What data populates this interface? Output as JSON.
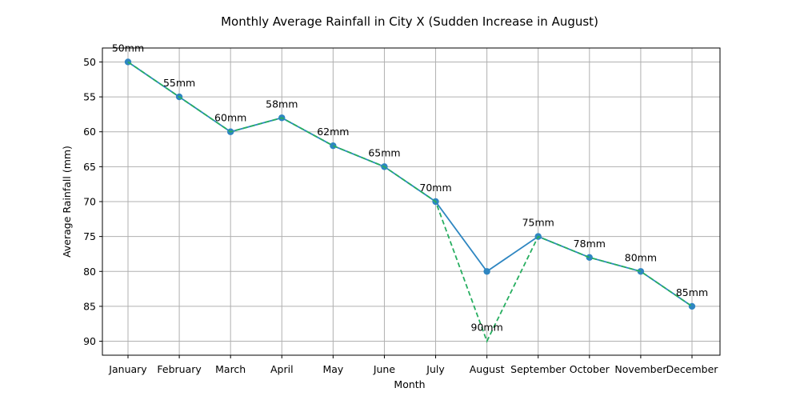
{
  "chart_data": {
    "type": "line",
    "title": "Monthly Average Rainfall in City X (Sudden Increase in August)",
    "xlabel": "Month",
    "ylabel": "Average Rainfall (mm)",
    "categories": [
      "January",
      "February",
      "March",
      "April",
      "May",
      "June",
      "July",
      "August",
      "September",
      "October",
      "November",
      "December"
    ],
    "y_inverted": true,
    "ylim": [
      92,
      48
    ],
    "yticks": [
      50,
      55,
      60,
      65,
      70,
      75,
      80,
      85,
      90
    ],
    "grid": true,
    "legend": "none",
    "series": [
      {
        "style": "solid-with-markers",
        "color": "#2e86c1",
        "values": [
          50,
          55,
          60,
          58,
          62,
          65,
          70,
          80,
          75,
          78,
          80,
          85
        ]
      },
      {
        "style": "dashed",
        "color": "#27ae60",
        "values": [
          50,
          55,
          60,
          58,
          62,
          65,
          70,
          90,
          75,
          78,
          80,
          85
        ]
      }
    ],
    "data_labels": [
      "50mm",
      "55mm",
      "60mm",
      "58mm",
      "62mm",
      "65mm",
      "70mm",
      "90mm",
      "75mm",
      "78mm",
      "80mm",
      "85mm"
    ],
    "data_label_values": [
      50,
      55,
      60,
      58,
      62,
      65,
      70,
      90,
      75,
      78,
      80,
      85
    ]
  }
}
